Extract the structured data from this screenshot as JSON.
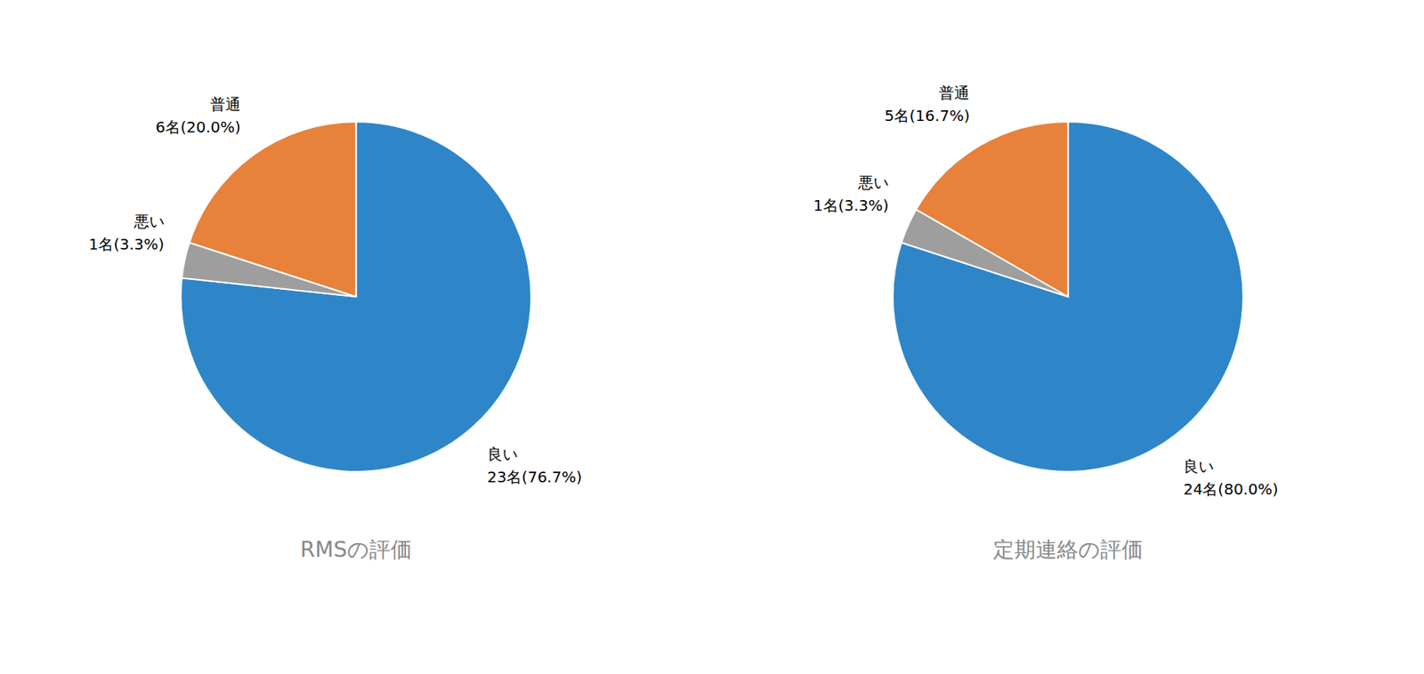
{
  "chart_data": [
    {
      "type": "pie",
      "title": "RMSの評価",
      "values": [
        76.7,
        3.3,
        20.0
      ],
      "value_labels": [
        "良い\n23名(76.7%)",
        "悪い\n1名(3.3%)",
        "普通\n6名(20.0%)"
      ],
      "colors": [
        "#2E86C8",
        "#9E9E9E",
        "#E8813A"
      ]
    },
    {
      "type": "pie",
      "title": "定期連絡の評価",
      "values": [
        80.0,
        3.3,
        16.7
      ],
      "value_labels": [
        "良い\n24名(80.0%)",
        "悪い\n1名(3.3%)",
        "普通\n5名(16.7%)"
      ],
      "colors": [
        "#2E86C8",
        "#9E9E9E",
        "#E8813A"
      ]
    }
  ]
}
